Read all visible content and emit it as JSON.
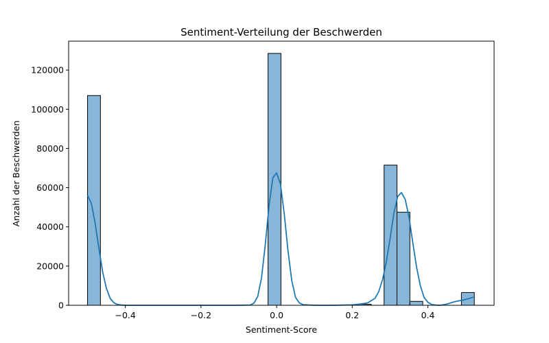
{
  "chart_data": {
    "type": "bar",
    "title": "Sentiment-Verteilung der Beschwerden",
    "xlabel": "Sentiment-Score",
    "ylabel": "Anzahl der Beschwerden",
    "xlim": [
      -0.55,
      0.575
    ],
    "ylim": [
      0,
      134750
    ],
    "grid": false,
    "xticks": [
      {
        "value": -0.4,
        "label": "−0.4"
      },
      {
        "value": -0.2,
        "label": "−0.2"
      },
      {
        "value": 0.0,
        "label": "0.0"
      },
      {
        "value": 0.2,
        "label": "0.2"
      },
      {
        "value": 0.4,
        "label": "0.4"
      }
    ],
    "yticks": [
      {
        "value": 0,
        "label": "0"
      },
      {
        "value": 20000,
        "label": "20000"
      },
      {
        "value": 40000,
        "label": "40000"
      },
      {
        "value": 60000,
        "label": "60000"
      },
      {
        "value": 80000,
        "label": "80000"
      },
      {
        "value": 100000,
        "label": "100000"
      },
      {
        "value": 120000,
        "label": "120000"
      }
    ],
    "bin_width": 0.0341,
    "bins": [
      {
        "x0": -0.5,
        "x1": -0.4659,
        "count": 107000
      },
      {
        "x0": -0.0227,
        "x1": 0.0114,
        "count": 128500
      },
      {
        "x0": 0.2159,
        "x1": 0.25,
        "count": 500
      },
      {
        "x0": 0.2841,
        "x1": 0.3182,
        "count": 71500
      },
      {
        "x0": 0.3182,
        "x1": 0.3523,
        "count": 47500
      },
      {
        "x0": 0.3523,
        "x1": 0.3864,
        "count": 2000
      },
      {
        "x0": 0.4886,
        "x1": 0.5227,
        "count": 6500
      }
    ],
    "kde": {
      "x": [
        -0.5,
        -0.49,
        -0.48,
        -0.47,
        -0.46,
        -0.45,
        -0.44,
        -0.43,
        -0.42,
        -0.41,
        -0.4,
        -0.35,
        -0.3,
        -0.2,
        -0.1,
        -0.07,
        -0.06,
        -0.05,
        -0.04,
        -0.03,
        -0.02,
        -0.01,
        0.0,
        0.01,
        0.02,
        0.03,
        0.04,
        0.05,
        0.06,
        0.07,
        0.1,
        0.15,
        0.2,
        0.22,
        0.24,
        0.26,
        0.27,
        0.28,
        0.29,
        0.3,
        0.31,
        0.32,
        0.33,
        0.34,
        0.35,
        0.36,
        0.37,
        0.38,
        0.39,
        0.4,
        0.41,
        0.42,
        0.43,
        0.44,
        0.45,
        0.46,
        0.47,
        0.48,
        0.49,
        0.5,
        0.51,
        0.52
      ],
      "y": [
        56000,
        52000,
        42000,
        29000,
        17000,
        8500,
        3500,
        1200,
        400,
        100,
        0,
        0,
        0,
        0,
        0,
        150,
        1000,
        4500,
        14000,
        31000,
        51000,
        65000,
        67500,
        62000,
        47000,
        28000,
        12500,
        4000,
        1200,
        300,
        0,
        0,
        200,
        600,
        1200,
        3500,
        7000,
        13000,
        22000,
        34000,
        47000,
        55500,
        57500,
        54000,
        45000,
        32000,
        19500,
        10000,
        4000,
        1500,
        400,
        100,
        0,
        200,
        600,
        1200,
        1800,
        2200,
        2500,
        3000,
        3500,
        4200
      ]
    },
    "colors": {
      "bar_fill": "#88b6d8",
      "bar_edge": "#000000",
      "kde_line": "#1f77b4"
    }
  }
}
